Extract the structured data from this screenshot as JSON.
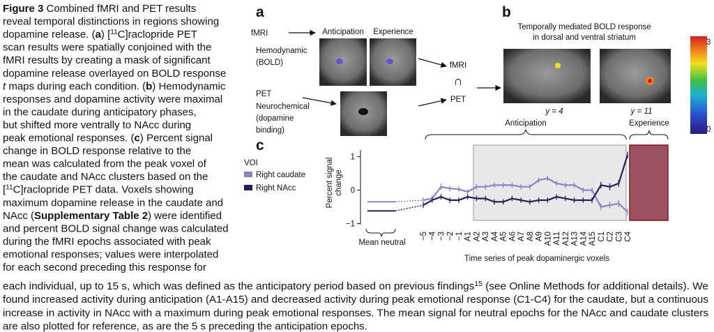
{
  "caption": {
    "left": [
      [
        "Figure 3",
        " Combined fMRI and PET results"
      ],
      [
        "reveal temporal distinctions in regions showing"
      ],
      [
        "dopamine release. (",
        "a",
        ") [",
        "11",
        "C]raclopride PET"
      ],
      [
        "scan results were spatially conjoined with the"
      ],
      [
        "fMRI results by creating a mask of significant"
      ],
      [
        "dopamine release overlayed on BOLD response"
      ],
      [
        "t",
        " maps during each condition. (",
        "b",
        ") Hemodynamic"
      ],
      [
        "responses and dopamine activity were maximal"
      ],
      [
        "in the caudate during anticipatory phases,"
      ],
      [
        "but shifted more ventrally to NAcc during"
      ],
      [
        "peak emotional responses. (",
        "c",
        ") Percent signal"
      ],
      [
        "change in BOLD response relative to the"
      ],
      [
        "mean was calculated from the peak voxel of"
      ],
      [
        "the caudate and NAcc clusters based on the"
      ],
      [
        "[",
        "11",
        "C]raclopride PET data. Voxels showing"
      ],
      [
        "maximum dopamine release in the caudate and"
      ],
      [
        "NAcc (",
        "Supplementary Table 2",
        ") were identified"
      ],
      [
        "and percent BOLD signal change was calculated"
      ],
      [
        "during the fMRI epochs associated with peak"
      ],
      [
        "emotional responses; values were interpolated"
      ],
      [
        "for each second preceding this response for"
      ]
    ],
    "bottom": [
      [
        "each individual, up to 15 s, which was defined as the anticipatory period based on previous findings",
        "15",
        " (see Online Methods for additional details). We"
      ],
      [
        "found increased activity during anticipation (A1-A15) and decreased activity during peak emotional response (C1-C4) for the caudate, but a continuous"
      ],
      [
        "increase in activity in NAcc with a maximum during peak emotional responses. The mean signal for neutral epochs for the NAcc and caudate clusters"
      ],
      [
        "are also plotted for reference, as are the 5 s preceding the anticipation epochs."
      ]
    ]
  },
  "panel_a": {
    "label": "a",
    "fmri": "fMRI",
    "anticipation": "Anticipation",
    "experience": "Experience",
    "hemodynamic": [
      "Hemodynamic",
      "(BOLD)"
    ],
    "pet": "PET",
    "neurochemical": [
      "Neurochemical",
      "(dopamine",
      "binding)"
    ],
    "conj_top": "fMRI",
    "conj_symbol": "∩",
    "conj_bottom": "PET"
  },
  "panel_b": {
    "label": "b",
    "title": [
      "Temporally mediated BOLD response",
      "in dorsal and ventral striatum"
    ],
    "slices": [
      "y = 4",
      "y = 11"
    ],
    "colorbar_max": "3",
    "colorbar_min": "0"
  },
  "chart_data": {
    "type": "line",
    "panel_label": "c",
    "legend_title": "VOI",
    "ylabel": [
      "Percent signal",
      "change"
    ],
    "xlabel": "Time series of peak dopaminergic voxels",
    "neutral_label": "Mean neutral",
    "anticipation_label": "Anticipation",
    "experience_label": "Experience",
    "categories": [
      "−5",
      "−4",
      "−3",
      "−2",
      "−1",
      "A1",
      "A2",
      "A3",
      "A4",
      "A5",
      "A6",
      "A7",
      "A8",
      "A9",
      "A10",
      "A11",
      "A12",
      "A13",
      "A14",
      "A15",
      "C1",
      "C2",
      "C3",
      "C4"
    ],
    "series": [
      {
        "name": "Right caudate",
        "color": "#8a82c2",
        "neutral": -0.35,
        "values": [
          -0.3,
          -0.25,
          0.1,
          0.05,
          0.03,
          -0.05,
          0.1,
          0.1,
          0.15,
          0.15,
          0.15,
          0.1,
          0.1,
          0.3,
          0.35,
          0.2,
          0.15,
          0.15,
          0,
          0,
          -0.5,
          -0.45,
          -0.4,
          -0.65
        ],
        "errors": [
          0.08,
          0.08,
          0.1,
          0.08,
          0.08,
          0.08,
          0.08,
          0.08,
          0.08,
          0.08,
          0.08,
          0.08,
          0.08,
          0.08,
          0.08,
          0.08,
          0.08,
          0.08,
          0.08,
          0.08,
          0.1,
          0.1,
          0.1,
          0.1
        ]
      },
      {
        "name": "Right NAcc",
        "color": "#22205a",
        "neutral": -0.62,
        "values": [
          -0.45,
          -0.3,
          -0.2,
          -0.3,
          -0.3,
          -0.2,
          -0.25,
          -0.25,
          -0.35,
          -0.35,
          -0.25,
          -0.3,
          -0.35,
          -0.3,
          -0.3,
          -0.2,
          -0.25,
          -0.3,
          -0.3,
          -0.3,
          0.15,
          0.1,
          0.2,
          1.05
        ],
        "errors": [
          0.08,
          0.08,
          0.08,
          0.08,
          0.08,
          0.08,
          0.08,
          0.08,
          0.08,
          0.08,
          0.08,
          0.08,
          0.08,
          0.08,
          0.08,
          0.08,
          0.08,
          0.08,
          0.08,
          0.08,
          0.1,
          0.1,
          0.1,
          0.1
        ]
      }
    ],
    "ylim": [
      -1.05,
      1.2
    ],
    "yticks": [
      1,
      0,
      {
        "value": -1,
        "label": "−1"
      }
    ]
  }
}
